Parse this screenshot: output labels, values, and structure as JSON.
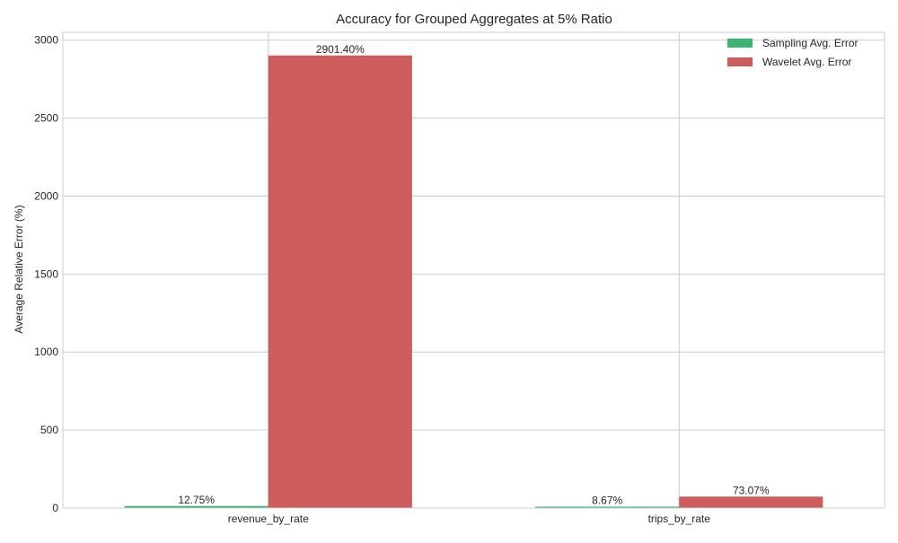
{
  "chart_data": {
    "type": "bar",
    "title": "Accuracy for Grouped Aggregates at 5% Ratio",
    "xlabel": "",
    "ylabel": "Average Relative Error (%)",
    "categories": [
      "revenue_by_rate",
      "trips_by_rate"
    ],
    "series": [
      {
        "name": "Sampling Avg. Error",
        "values": [
          12.75,
          8.67
        ],
        "labels": [
          "12.75%",
          "8.67%"
        ],
        "color": "#3cb371"
      },
      {
        "name": "Wavelet Avg. Error",
        "values": [
          2901.4,
          73.07
        ],
        "labels": [
          "2901.40%",
          "73.07%"
        ],
        "color": "#cd5c5c"
      }
    ],
    "ylim": [
      0,
      3050
    ],
    "yticks": [
      0,
      500,
      1000,
      1500,
      2000,
      2500,
      3000
    ],
    "grid": true,
    "legend_position": "top-right"
  }
}
